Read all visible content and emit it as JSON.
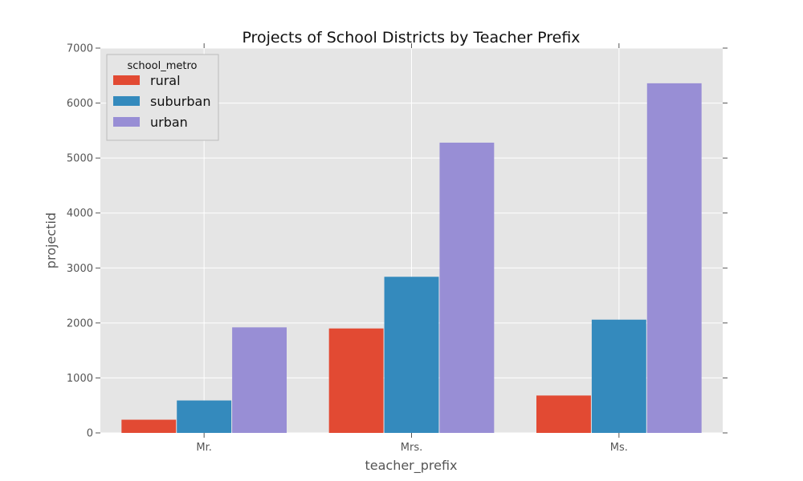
{
  "chart_data": {
    "type": "bar",
    "title": "Projects of School Districts by Teacher Prefix",
    "xlabel": "teacher_prefix",
    "ylabel": "projectid",
    "categories": [
      "Mr.",
      "Mrs.",
      "Ms."
    ],
    "series": [
      {
        "name": "rural",
        "color": "#e24a33",
        "values": [
          240,
          1900,
          680
        ]
      },
      {
        "name": "suburban",
        "color": "#348abd",
        "values": [
          590,
          2840,
          2060
        ]
      },
      {
        "name": "urban",
        "color": "#988ed5",
        "values": [
          1920,
          5280,
          6360
        ]
      }
    ],
    "ylim": [
      0,
      7000
    ],
    "yticks": [
      0,
      1000,
      2000,
      3000,
      4000,
      5000,
      6000,
      7000
    ],
    "grid": true,
    "legend": {
      "title": "school_metro",
      "placement": "top-left"
    },
    "colors": {
      "plot_background": "#e5e5e5",
      "gridline": "#ffffff"
    }
  }
}
